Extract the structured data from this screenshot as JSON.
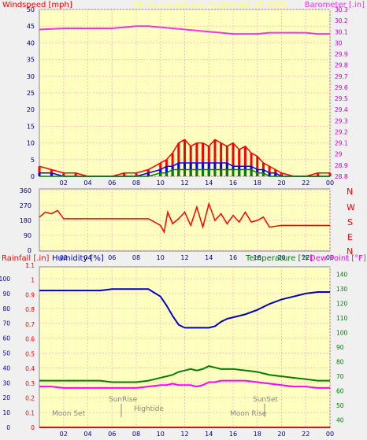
{
  "header": {
    "windspeed_label": "Windspeed [mph]",
    "title": "24 hour graph day   September 26 2020",
    "barometer_label": "Barometer [.in]"
  },
  "colors": {
    "background": "#f0f0f0",
    "plot_bg": "#ffffc0",
    "grid": "#ffc0c0",
    "wind": "#ff0000",
    "gust_fill": "#ff0000",
    "wind_avg": "#0000ff",
    "wind_low": "#008000",
    "barometer": "#ee33ee",
    "direction": "#ff0000",
    "humidity": "#0000cc",
    "temperature": "#008000",
    "dewpoint": "#ff00ff",
    "rain": "#ff0000",
    "title_yellow": "#ffff66"
  },
  "time_ticks": [
    "02",
    "04",
    "06",
    "08",
    "10",
    "12",
    "14",
    "16",
    "18",
    "20",
    "22",
    "00"
  ],
  "chart_data": [
    {
      "type": "area",
      "name": "wind-barometer",
      "title": "24 hour graph day   September 26 2020",
      "ylabel": "Windspeed [mph]",
      "ylabel_right": "Barometer [.in]",
      "ylim": [
        0,
        50
      ],
      "ylim_right": [
        28.8,
        30.3
      ],
      "yticks": [
        0,
        5,
        10,
        15,
        20,
        25,
        30,
        35,
        40,
        45,
        50
      ],
      "yticks_right": [
        "28.8",
        "28.9",
        "29",
        "29.1",
        "29.2",
        "29.3",
        "29.4",
        "29.5",
        "29.6",
        "29.7",
        "29.8",
        "29.9",
        "30",
        "30.1",
        "30.2",
        "30.3"
      ],
      "x": [
        0,
        1,
        2,
        3,
        4,
        5,
        6,
        7,
        8,
        9,
        10,
        10.5,
        11,
        11.5,
        12,
        12.5,
        13,
        13.5,
        14,
        14.5,
        15,
        15.5,
        16,
        16.5,
        17,
        17.5,
        18,
        18.5,
        19,
        19.5,
        20,
        21,
        22,
        23,
        24
      ],
      "series": [
        {
          "name": "gust",
          "values": [
            3,
            2,
            1,
            1,
            0,
            0,
            0,
            1,
            1,
            2,
            4,
            5,
            7,
            10,
            11,
            9,
            10,
            10,
            9,
            11,
            10,
            9,
            10,
            8,
            9,
            7,
            6,
            4,
            3,
            2,
            1,
            0,
            0,
            1,
            1
          ]
        },
        {
          "name": "average",
          "values": [
            1,
            1,
            0,
            0,
            0,
            0,
            0,
            0,
            0,
            1,
            2,
            3,
            3,
            4,
            4,
            4,
            4,
            4,
            4,
            4,
            4,
            4,
            3,
            3,
            3,
            3,
            2,
            2,
            1,
            1,
            0,
            0,
            0,
            0,
            0
          ]
        },
        {
          "name": "low",
          "values": [
            0,
            0,
            0,
            0,
            0,
            0,
            0,
            0,
            0,
            0,
            1,
            1,
            2,
            2,
            2,
            2,
            2,
            2,
            2,
            2,
            2,
            2,
            2,
            2,
            2,
            2,
            1,
            1,
            0,
            0,
            0,
            0,
            0,
            0,
            0
          ]
        }
      ],
      "barometer": {
        "x": [
          0,
          2,
          4,
          6,
          7,
          8,
          9,
          10,
          11,
          12,
          13,
          14,
          15,
          16,
          17,
          18,
          19,
          20,
          21,
          22,
          23,
          24
        ],
        "values": [
          30.12,
          30.13,
          30.13,
          30.13,
          30.14,
          30.15,
          30.15,
          30.14,
          30.13,
          30.12,
          30.11,
          30.1,
          30.09,
          30.08,
          30.08,
          30.08,
          30.09,
          30.09,
          30.09,
          30.09,
          30.08,
          30.08
        ]
      }
    },
    {
      "type": "line",
      "name": "wind-direction",
      "yticks": [
        0,
        90,
        180,
        270,
        360
      ],
      "right_labels": [
        "N",
        "W",
        "S",
        "E",
        "N"
      ],
      "ylim": [
        0,
        360
      ],
      "x": [
        0,
        0.5,
        1,
        1.5,
        2,
        3,
        4,
        5,
        6,
        7,
        8,
        9,
        10,
        10.3,
        10.6,
        11,
        11.5,
        12,
        12.5,
        13,
        13.5,
        14,
        14.5,
        15,
        15.5,
        16,
        16.5,
        17,
        17.5,
        18,
        18.5,
        19,
        20,
        21,
        22,
        23,
        24
      ],
      "values": [
        200,
        230,
        220,
        240,
        190,
        190,
        190,
        190,
        190,
        190,
        190,
        190,
        150,
        110,
        230,
        160,
        190,
        230,
        150,
        260,
        140,
        280,
        180,
        220,
        160,
        210,
        170,
        230,
        170,
        180,
        200,
        140,
        150,
        150,
        150,
        150,
        150
      ]
    },
    {
      "type": "line",
      "name": "temp-humidity-rain",
      "ylabel_left_1": "Rainfall [.in]",
      "ylabel_left_2": "Humidity [%]",
      "ylabel_right_1": "Temperature [°F]",
      "ylabel_right_2": "Dew Point [°F]",
      "humidity_ticks": [
        0,
        10,
        20,
        30,
        40,
        50,
        60,
        70,
        80,
        90,
        100
      ],
      "rain_ticks": [
        "0",
        "0.1",
        "0.2",
        "0.3",
        "0.4",
        "0.5",
        "0.6",
        "0.7",
        "0.8",
        "0.9",
        "1",
        "1.1"
      ],
      "temp_ticks": [
        40,
        50,
        60,
        70,
        80,
        90,
        100,
        110,
        120,
        130,
        140
      ],
      "humidity_ylim": [
        0,
        100
      ],
      "temp_ylim": [
        35,
        145
      ],
      "x": [
        0,
        1,
        2,
        3,
        4,
        5,
        6,
        7,
        8,
        9,
        10,
        10.5,
        11,
        11.5,
        12,
        12.5,
        13,
        13.5,
        14,
        14.5,
        15,
        15.5,
        16,
        17,
        18,
        19,
        20,
        21,
        22,
        23,
        24
      ],
      "humidity": [
        92,
        92,
        92,
        92,
        92,
        92,
        93,
        93,
        93,
        93,
        88,
        82,
        75,
        69,
        67,
        67,
        67,
        67,
        67,
        68,
        71,
        73,
        74,
        76,
        79,
        83,
        86,
        88,
        90,
        91,
        91
      ],
      "temperature": [
        67,
        67,
        67,
        67,
        67,
        67,
        66,
        66,
        66,
        67,
        69,
        70,
        71,
        73,
        74,
        75,
        74,
        75,
        77,
        76,
        75,
        75,
        75,
        74,
        73,
        71,
        70,
        69,
        68,
        67,
        67
      ],
      "dewpoint": [
        63,
        63,
        62,
        62,
        62,
        62,
        62,
        62,
        62,
        63,
        64,
        64,
        65,
        64,
        64,
        64,
        63,
        64,
        66,
        66,
        67,
        67,
        67,
        67,
        66,
        65,
        64,
        63,
        63,
        62,
        62
      ],
      "rain": [
        0,
        0,
        0,
        0,
        0,
        0,
        0,
        0,
        0,
        0,
        0,
        0,
        0,
        0,
        0,
        0,
        0,
        0,
        0,
        0,
        0,
        0,
        0,
        0,
        0,
        0,
        0,
        0,
        0,
        0,
        0
      ],
      "annotations": {
        "moonset": "Moon Set",
        "sunrise": "SunRise",
        "hightide": "Hightide",
        "sunset": "SunSet",
        "moonrise": "Moon Rise"
      }
    }
  ]
}
